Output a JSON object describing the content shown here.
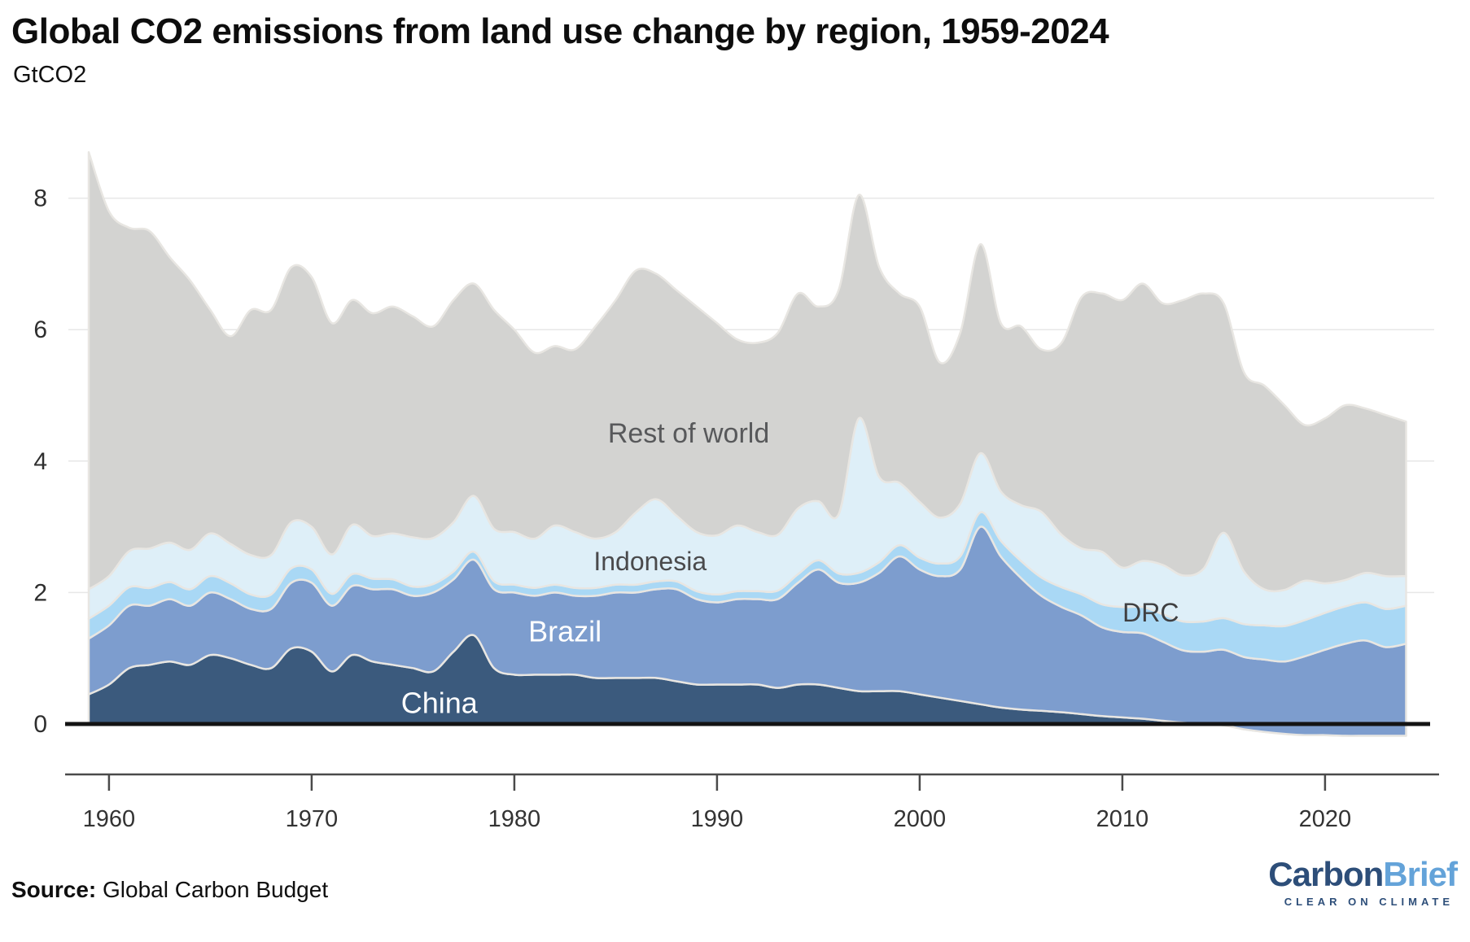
{
  "header": {
    "title": "Global CO2 emissions from land use change by region, 1959-2024",
    "subtitle": "GtCO2"
  },
  "footer": {
    "source_label": "Source:",
    "source_text": " Global Carbon Budget"
  },
  "logo": {
    "part1": "Carbon",
    "part2": "Brief",
    "tagline": "CLEAR ON CLIMATE",
    "color1": "#2d4e79",
    "color2": "#64a3d9"
  },
  "chart_data": {
    "type": "area",
    "stacked": true,
    "title": "Global CO2 emissions from land use change by region, 1959-2024",
    "ylabel": "GtCO2",
    "xlabel": "",
    "grid": "horizontal",
    "legend_position": "labels-inside-areas",
    "ylim": [
      -0.6,
      8.8
    ],
    "x_ticks": [
      1960,
      1970,
      1980,
      1990,
      2000,
      2010,
      2020
    ],
    "y_ticks": [
      0,
      2,
      4,
      6,
      8
    ],
    "years": [
      1959,
      1960,
      1961,
      1962,
      1963,
      1964,
      1965,
      1966,
      1967,
      1968,
      1969,
      1970,
      1971,
      1972,
      1973,
      1974,
      1975,
      1976,
      1977,
      1978,
      1979,
      1980,
      1981,
      1982,
      1983,
      1984,
      1985,
      1986,
      1987,
      1988,
      1989,
      1990,
      1991,
      1992,
      1993,
      1994,
      1995,
      1996,
      1997,
      1998,
      1999,
      2000,
      2001,
      2002,
      2003,
      2004,
      2005,
      2006,
      2007,
      2008,
      2009,
      2010,
      2011,
      2012,
      2013,
      2014,
      2015,
      2016,
      2017,
      2018,
      2019,
      2020,
      2021,
      2022,
      2023,
      2024
    ],
    "series": [
      {
        "name": "China",
        "color": "#3b5a7d",
        "label_color": "#ffffff",
        "values": [
          0.45,
          0.6,
          0.85,
          0.9,
          0.95,
          0.9,
          1.05,
          1.0,
          0.9,
          0.85,
          1.15,
          1.1,
          0.8,
          1.05,
          0.95,
          0.9,
          0.85,
          0.8,
          1.1,
          1.35,
          0.85,
          0.75,
          0.75,
          0.75,
          0.75,
          0.7,
          0.7,
          0.7,
          0.7,
          0.65,
          0.6,
          0.6,
          0.6,
          0.6,
          0.55,
          0.6,
          0.6,
          0.55,
          0.5,
          0.5,
          0.5,
          0.45,
          0.4,
          0.35,
          0.3,
          0.25,
          0.22,
          0.2,
          0.18,
          0.15,
          0.12,
          0.1,
          0.08,
          0.05,
          0.02,
          0.0,
          -0.02,
          -0.08,
          -0.12,
          -0.15,
          -0.17,
          -0.17,
          -0.18,
          -0.18,
          -0.18,
          -0.18
        ]
      },
      {
        "name": "Brazil",
        "color": "#7d9dce",
        "label_color": "#ffffff",
        "values": [
          0.85,
          0.9,
          0.95,
          0.9,
          0.95,
          0.9,
          0.95,
          0.9,
          0.85,
          0.9,
          1.0,
          1.05,
          1.0,
          1.05,
          1.1,
          1.15,
          1.1,
          1.2,
          1.1,
          1.15,
          1.2,
          1.25,
          1.2,
          1.25,
          1.2,
          1.25,
          1.3,
          1.3,
          1.35,
          1.4,
          1.3,
          1.25,
          1.3,
          1.3,
          1.35,
          1.55,
          1.75,
          1.6,
          1.65,
          1.8,
          2.05,
          1.9,
          1.85,
          2.0,
          2.7,
          2.3,
          2.0,
          1.75,
          1.6,
          1.5,
          1.35,
          1.3,
          1.3,
          1.2,
          1.1,
          1.1,
          1.15,
          1.1,
          1.1,
          1.1,
          1.2,
          1.3,
          1.4,
          1.45,
          1.35,
          1.4
        ]
      },
      {
        "name": "DRC",
        "color": "#a9d8f5",
        "label_color": "#3f3f41",
        "values": [
          0.3,
          0.3,
          0.28,
          0.27,
          0.26,
          0.25,
          0.25,
          0.24,
          0.22,
          0.22,
          0.22,
          0.2,
          0.18,
          0.18,
          0.16,
          0.15,
          0.14,
          0.13,
          0.12,
          0.12,
          0.12,
          0.12,
          0.12,
          0.12,
          0.12,
          0.12,
          0.12,
          0.12,
          0.12,
          0.12,
          0.12,
          0.12,
          0.12,
          0.12,
          0.13,
          0.13,
          0.14,
          0.14,
          0.15,
          0.16,
          0.17,
          0.18,
          0.19,
          0.2,
          0.22,
          0.24,
          0.26,
          0.28,
          0.3,
          0.32,
          0.35,
          0.38,
          0.4,
          0.42,
          0.44,
          0.46,
          0.48,
          0.5,
          0.52,
          0.54,
          0.55,
          0.56,
          0.57,
          0.58,
          0.58,
          0.58
        ]
      },
      {
        "name": "Indonesia",
        "color": "#deeff8",
        "label_color": "#4a4a4c",
        "values": [
          0.45,
          0.45,
          0.55,
          0.6,
          0.6,
          0.6,
          0.65,
          0.6,
          0.6,
          0.6,
          0.7,
          0.65,
          0.6,
          0.75,
          0.65,
          0.7,
          0.75,
          0.7,
          0.75,
          0.85,
          0.8,
          0.8,
          0.75,
          0.9,
          0.85,
          0.75,
          0.8,
          1.1,
          1.25,
          1.0,
          0.9,
          0.9,
          1.0,
          0.9,
          0.85,
          1.0,
          0.9,
          0.9,
          2.35,
          1.3,
          0.95,
          0.85,
          0.7,
          0.8,
          0.9,
          0.75,
          0.85,
          1.0,
          0.8,
          0.7,
          0.8,
          0.6,
          0.7,
          0.75,
          0.7,
          0.8,
          1.3,
          0.8,
          0.55,
          0.55,
          0.6,
          0.45,
          0.4,
          0.45,
          0.5,
          0.45
        ]
      },
      {
        "name": "Rest of world",
        "color": "#d3d3d1",
        "label_color": "#58595b",
        "values": [
          6.65,
          5.55,
          4.92,
          4.83,
          4.34,
          4.1,
          3.4,
          3.16,
          3.73,
          3.73,
          3.88,
          3.8,
          3.52,
          3.42,
          3.39,
          3.45,
          3.36,
          3.22,
          3.38,
          3.23,
          3.33,
          3.08,
          2.83,
          2.73,
          2.78,
          3.23,
          3.53,
          3.68,
          3.43,
          3.43,
          3.43,
          3.23,
          2.83,
          2.88,
          3.07,
          3.27,
          2.96,
          3.41,
          3.4,
          3.19,
          2.88,
          2.97,
          2.36,
          2.6,
          3.18,
          2.56,
          2.72,
          2.47,
          2.92,
          3.83,
          3.93,
          4.07,
          4.22,
          3.98,
          4.19,
          4.19,
          3.49,
          3.03,
          3.1,
          2.81,
          2.37,
          2.51,
          2.66,
          2.5,
          2.45,
          2.35
        ]
      }
    ],
    "area_labels": [
      {
        "text": "China",
        "year": 1976.3,
        "value": 0.32,
        "size": 36,
        "color": "#ffffff"
      },
      {
        "text": "Brazil",
        "year": 1982.5,
        "value": 1.41,
        "size": 36,
        "color": "#ffffff"
      },
      {
        "text": "Indonesia",
        "year": 1986.7,
        "value": 2.48,
        "size": 32,
        "color": "#4a4a4c"
      },
      {
        "text": "DRC",
        "year": 2011.4,
        "value": 1.7,
        "size": 32,
        "color": "#3f3f41"
      },
      {
        "text": "Rest of world",
        "year": 1988.6,
        "value": 4.43,
        "size": 34,
        "color": "#58595b"
      }
    ],
    "colors": {
      "gridline": "#e7e7e7",
      "zero_line": "#141414",
      "axis_line": "#4a4a4a",
      "tick_label": "#333333",
      "band_stroke": "#e8e6e2"
    }
  }
}
